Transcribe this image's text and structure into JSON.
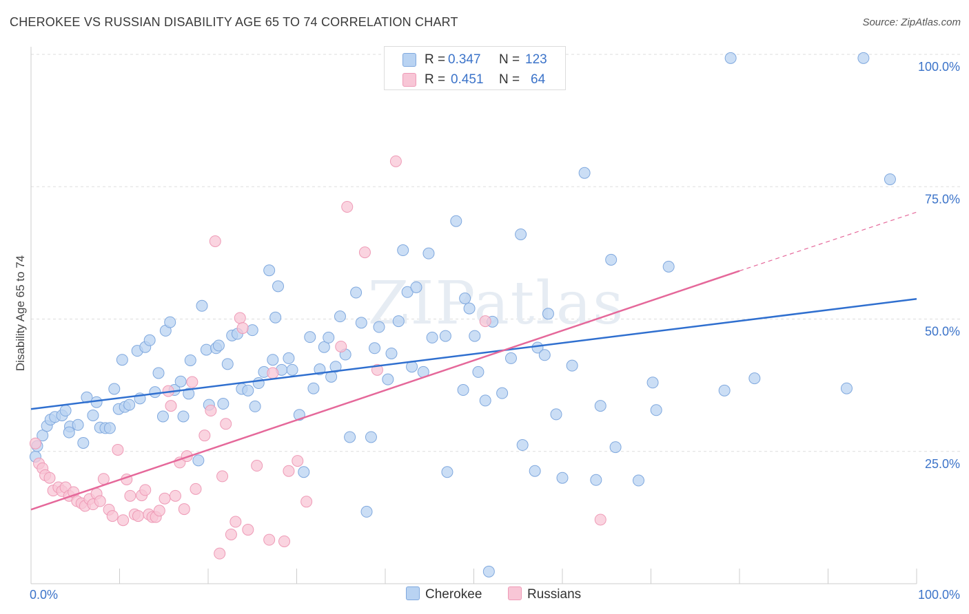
{
  "header": {
    "title": "CHEROKEE VS RUSSIAN DISABILITY AGE 65 TO 74 CORRELATION CHART",
    "source": "Source: ZipAtlas.com"
  },
  "legend": {
    "rows": [
      {
        "r_label": "R =",
        "r_value": "0.347",
        "n_label": "N =",
        "n_value": "123"
      },
      {
        "r_label": "R =",
        "r_value": "0.451",
        "n_label": "N =",
        "n_value": "64"
      }
    ],
    "bottom": [
      "Cherokee",
      "Russians"
    ]
  },
  "colors": {
    "cherokee_fill": "#b9d3f2",
    "cherokee_stroke": "#7fa8de",
    "cherokee_line": "#2f6fcf",
    "russians_fill": "#f8c6d6",
    "russians_stroke": "#ee9ab6",
    "russians_line": "#e5689a",
    "axis_label": "#3b73c9",
    "grid": "#dddddd"
  },
  "watermark": "ZIPatlas",
  "chart_data": {
    "type": "scatter",
    "title": "CHEROKEE VS RUSSIAN DISABILITY AGE 65 TO 74 CORRELATION CHART",
    "xlabel": "",
    "ylabel": "Disability Age 65 to 74",
    "xlim": [
      0,
      100
    ],
    "ylim": [
      0,
      100
    ],
    "x_tick_labels": [
      "0.0%",
      "100.0%"
    ],
    "y_tick_labels": [
      "25.0%",
      "50.0%",
      "75.0%",
      "100.0%"
    ],
    "y_ticks": [
      25,
      50,
      75,
      100
    ],
    "grid": "horizontal dashed",
    "legend_position": "top-center",
    "series": [
      {
        "name": "Cherokee",
        "R": 0.347,
        "N": 123,
        "trend": {
          "x": [
            0,
            100
          ],
          "y": [
            33.0,
            53.8
          ]
        },
        "points": [
          [
            0.5,
            24.0
          ],
          [
            0.7,
            26.0
          ],
          [
            1.3,
            28.0
          ],
          [
            1.8,
            29.8
          ],
          [
            2.2,
            31.0
          ],
          [
            2.7,
            31.5
          ],
          [
            3.5,
            31.8
          ],
          [
            3.9,
            32.7
          ],
          [
            4.4,
            29.7
          ],
          [
            4.3,
            28.6
          ],
          [
            5.3,
            30.0
          ],
          [
            5.9,
            26.6
          ],
          [
            6.3,
            35.2
          ],
          [
            7.0,
            31.8
          ],
          [
            7.4,
            34.3
          ],
          [
            7.8,
            29.5
          ],
          [
            8.4,
            29.4
          ],
          [
            8.9,
            29.4
          ],
          [
            9.4,
            36.8
          ],
          [
            9.9,
            33.0
          ],
          [
            10.3,
            42.3
          ],
          [
            10.6,
            33.4
          ],
          [
            11.1,
            33.8
          ],
          [
            12.0,
            44.0
          ],
          [
            12.3,
            35.0
          ],
          [
            12.9,
            44.7
          ],
          [
            13.4,
            46.0
          ],
          [
            14.0,
            36.2
          ],
          [
            14.4,
            39.8
          ],
          [
            14.9,
            31.6
          ],
          [
            15.2,
            47.8
          ],
          [
            15.7,
            49.4
          ],
          [
            16.2,
            36.6
          ],
          [
            16.9,
            38.2
          ],
          [
            17.2,
            31.6
          ],
          [
            17.8,
            35.9
          ],
          [
            18.0,
            42.2
          ],
          [
            18.9,
            23.3
          ],
          [
            19.3,
            52.5
          ],
          [
            19.8,
            44.2
          ],
          [
            20.1,
            33.8
          ],
          [
            20.9,
            44.5
          ],
          [
            21.2,
            45.0
          ],
          [
            21.7,
            34.0
          ],
          [
            22.2,
            41.5
          ],
          [
            22.7,
            46.9
          ],
          [
            23.3,
            47.2
          ],
          [
            23.8,
            36.8
          ],
          [
            24.5,
            36.5
          ],
          [
            25.0,
            47.9
          ],
          [
            25.3,
            33.5
          ],
          [
            25.7,
            37.9
          ],
          [
            26.3,
            40.0
          ],
          [
            26.9,
            59.2
          ],
          [
            27.3,
            42.3
          ],
          [
            27.6,
            50.3
          ],
          [
            27.9,
            56.2
          ],
          [
            28.3,
            40.4
          ],
          [
            29.1,
            42.6
          ],
          [
            29.5,
            40.4
          ],
          [
            30.3,
            31.9
          ],
          [
            30.8,
            21.1
          ],
          [
            31.5,
            46.6
          ],
          [
            31.9,
            36.9
          ],
          [
            32.6,
            40.5
          ],
          [
            33.1,
            44.7
          ],
          [
            33.6,
            46.5
          ],
          [
            33.9,
            39.1
          ],
          [
            34.4,
            41.0
          ],
          [
            34.9,
            50.5
          ],
          [
            35.5,
            43.3
          ],
          [
            36.0,
            27.7
          ],
          [
            36.7,
            55.0
          ],
          [
            37.3,
            49.3
          ],
          [
            37.9,
            13.6
          ],
          [
            38.4,
            27.7
          ],
          [
            38.8,
            44.5
          ],
          [
            39.3,
            48.5
          ],
          [
            40.3,
            38.6
          ],
          [
            40.7,
            43.5
          ],
          [
            41.5,
            49.6
          ],
          [
            42.0,
            63.0
          ],
          [
            42.5,
            55.1
          ],
          [
            43.0,
            41.0
          ],
          [
            43.5,
            56.0
          ],
          [
            44.3,
            40.0
          ],
          [
            44.9,
            62.4
          ],
          [
            45.3,
            46.5
          ],
          [
            46.8,
            46.8
          ],
          [
            47.0,
            21.1
          ],
          [
            48.0,
            68.5
          ],
          [
            48.8,
            36.6
          ],
          [
            49.0,
            53.9
          ],
          [
            49.5,
            52.0
          ],
          [
            50.1,
            46.8
          ],
          [
            50.5,
            40.0
          ],
          [
            51.3,
            34.6
          ],
          [
            51.7,
            2.3
          ],
          [
            52.1,
            49.5
          ],
          [
            53.2,
            36.0
          ],
          [
            54.2,
            42.6
          ],
          [
            55.3,
            66.0
          ],
          [
            55.5,
            26.2
          ],
          [
            56.9,
            21.3
          ],
          [
            57.2,
            44.6
          ],
          [
            58.0,
            43.2
          ],
          [
            58.4,
            51.0
          ],
          [
            59.3,
            32.0
          ],
          [
            60.0,
            20.0
          ],
          [
            61.1,
            41.2
          ],
          [
            62.5,
            77.6
          ],
          [
            63.8,
            19.6
          ],
          [
            64.3,
            33.6
          ],
          [
            65.5,
            61.2
          ],
          [
            66.0,
            25.8
          ],
          [
            68.6,
            19.5
          ],
          [
            70.2,
            38.0
          ],
          [
            70.6,
            32.8
          ],
          [
            72.0,
            59.9
          ],
          [
            78.3,
            36.5
          ],
          [
            79.0,
            99.3
          ],
          [
            81.7,
            38.8
          ],
          [
            92.1,
            36.9
          ],
          [
            94.0,
            99.3
          ],
          [
            97.0,
            76.4
          ]
        ]
      },
      {
        "name": "Russians",
        "R": 0.451,
        "N": 64,
        "trend": {
          "x": [
            0,
            80
          ],
          "y": [
            14.0,
            59.1
          ]
        },
        "trend_dashed_extension": {
          "x": [
            80,
            100
          ],
          "y": [
            59.1,
            70.2
          ]
        },
        "points": [
          [
            0.5,
            26.5
          ],
          [
            0.9,
            22.7
          ],
          [
            1.3,
            21.8
          ],
          [
            1.6,
            20.5
          ],
          [
            2.1,
            20.0
          ],
          [
            2.5,
            17.6
          ],
          [
            3.1,
            18.2
          ],
          [
            3.5,
            17.5
          ],
          [
            3.9,
            18.2
          ],
          [
            4.3,
            16.6
          ],
          [
            4.8,
            17.3
          ],
          [
            5.2,
            15.6
          ],
          [
            5.7,
            15.2
          ],
          [
            6.1,
            14.7
          ],
          [
            6.6,
            16.0
          ],
          [
            7.0,
            15.0
          ],
          [
            7.4,
            17.0
          ],
          [
            7.8,
            15.6
          ],
          [
            8.2,
            19.8
          ],
          [
            8.8,
            14.0
          ],
          [
            9.2,
            12.8
          ],
          [
            9.8,
            25.3
          ],
          [
            10.4,
            12.0
          ],
          [
            10.8,
            19.7
          ],
          [
            11.2,
            16.6
          ],
          [
            11.7,
            13.1
          ],
          [
            12.1,
            12.8
          ],
          [
            12.5,
            16.7
          ],
          [
            12.9,
            17.7
          ],
          [
            13.3,
            13.1
          ],
          [
            13.7,
            12.6
          ],
          [
            14.1,
            12.6
          ],
          [
            14.5,
            13.8
          ],
          [
            15.1,
            16.1
          ],
          [
            15.5,
            36.4
          ],
          [
            15.8,
            33.6
          ],
          [
            16.3,
            16.6
          ],
          [
            16.8,
            22.9
          ],
          [
            17.3,
            14.1
          ],
          [
            17.6,
            24.1
          ],
          [
            18.2,
            38.1
          ],
          [
            18.6,
            17.9
          ],
          [
            19.6,
            28.0
          ],
          [
            20.3,
            32.7
          ],
          [
            20.8,
            64.7
          ],
          [
            21.3,
            5.7
          ],
          [
            21.6,
            20.3
          ],
          [
            22.0,
            30.2
          ],
          [
            22.6,
            9.3
          ],
          [
            23.1,
            11.7
          ],
          [
            23.6,
            50.2
          ],
          [
            23.9,
            48.3
          ],
          [
            24.5,
            10.2
          ],
          [
            25.5,
            22.3
          ],
          [
            26.9,
            8.3
          ],
          [
            27.3,
            39.8
          ],
          [
            28.6,
            8.0
          ],
          [
            29.1,
            21.3
          ],
          [
            30.1,
            23.2
          ],
          [
            31.1,
            15.5
          ],
          [
            35.0,
            44.8
          ],
          [
            35.7,
            71.2
          ],
          [
            37.7,
            62.6
          ],
          [
            39.1,
            40.4
          ],
          [
            41.2,
            79.8
          ],
          [
            51.3,
            49.6
          ],
          [
            64.3,
            12.1
          ]
        ]
      }
    ]
  }
}
